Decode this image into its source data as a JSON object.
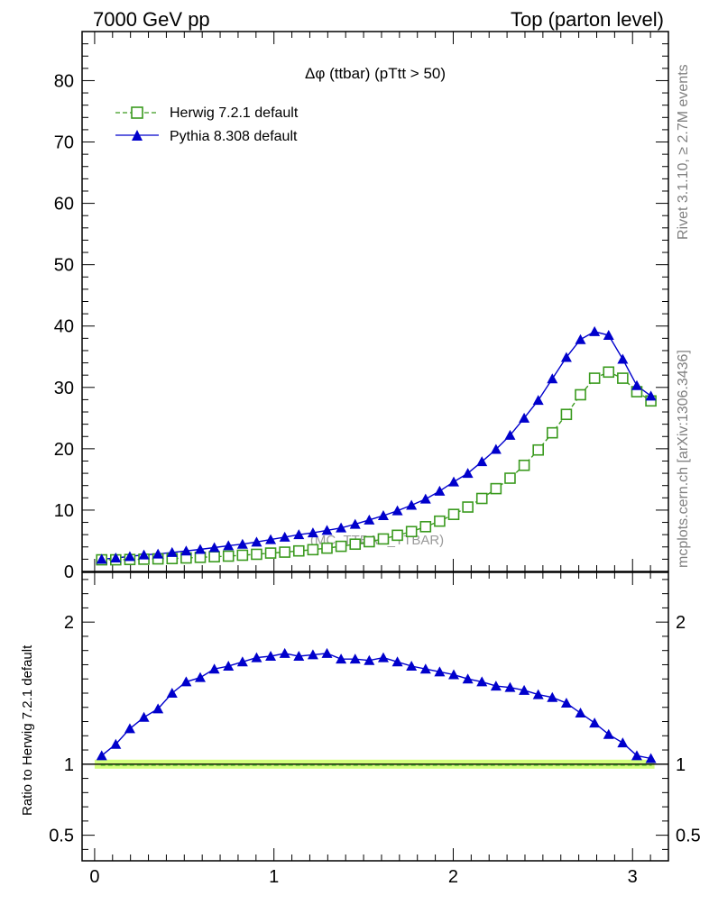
{
  "header": {
    "left": "7000 GeV pp",
    "right": "Top (parton level)"
  },
  "side_labels": {
    "rivet": "Rivet 3.1.10, ≥ 2.7M events",
    "site": "mcplots.cern.ch [arXiv:1306.3436]"
  },
  "watermark": "(MC_TTBAR_TTBAR)",
  "colors": {
    "herwig": "#3a9a1e",
    "pythia": "#0000cc",
    "band": "#ccff66"
  },
  "chart_data": [
    {
      "type": "line",
      "title": "Δφ (ttbar) (pTtt > 50)",
      "xlabel": "",
      "ylabel": "",
      "xlim": [
        -0.07,
        3.2
      ],
      "ylim": [
        0,
        88
      ],
      "yticks": [
        0,
        10,
        20,
        30,
        40,
        50,
        60,
        70,
        80
      ],
      "ytick_labels": [
        "0",
        "10",
        "20",
        "30",
        "40",
        "50",
        "60",
        "70",
        "80"
      ],
      "legend_position": "top-left",
      "x": [
        0.0393,
        0.1178,
        0.1963,
        0.2749,
        0.3534,
        0.432,
        0.5105,
        0.589,
        0.6676,
        0.7461,
        0.8247,
        0.9032,
        0.9817,
        1.0603,
        1.1388,
        1.2174,
        1.2959,
        1.3744,
        1.453,
        1.5315,
        1.6101,
        1.6886,
        1.7671,
        1.8457,
        1.9242,
        2.0028,
        2.0813,
        2.1598,
        2.2384,
        2.3169,
        2.3955,
        2.474,
        2.5525,
        2.6311,
        2.7096,
        2.7882,
        2.8667,
        2.9452,
        3.0238,
        3.1023
      ],
      "series": [
        {
          "name": "Herwig 7.2.1 default",
          "marker": "open-square",
          "values": [
            1.9,
            1.9,
            1.95,
            2.0,
            2.05,
            2.1,
            2.2,
            2.3,
            2.4,
            2.5,
            2.65,
            2.8,
            3.0,
            3.15,
            3.35,
            3.55,
            3.8,
            4.1,
            4.45,
            4.85,
            5.3,
            5.9,
            6.5,
            7.3,
            8.2,
            9.3,
            10.5,
            11.9,
            13.5,
            15.2,
            17.3,
            19.8,
            22.6,
            25.6,
            28.8,
            31.5,
            32.5,
            31.5,
            29.3,
            27.8
          ]
        },
        {
          "name": "Pythia 8.308 default",
          "marker": "filled-triangle",
          "values": [
            2.0,
            2.2,
            2.45,
            2.7,
            2.85,
            3.1,
            3.35,
            3.6,
            3.9,
            4.2,
            4.45,
            4.8,
            5.2,
            5.6,
            6.0,
            6.3,
            6.7,
            7.1,
            7.7,
            8.4,
            9.1,
            9.9,
            10.8,
            11.8,
            13.1,
            14.6,
            16.0,
            17.9,
            19.9,
            22.2,
            25.0,
            27.9,
            31.4,
            34.9,
            37.8,
            39.1,
            38.5,
            34.6,
            30.3,
            28.6
          ]
        }
      ]
    },
    {
      "type": "line",
      "title": "",
      "xlabel": "",
      "ylabel": "Ratio to Herwig 7.2.1 default",
      "xlim": [
        -0.07,
        3.2
      ],
      "ylim": [
        0.32,
        2.35
      ],
      "yticks": [
        0.5,
        1,
        2
      ],
      "ytick_labels": [
        "0.5",
        "1",
        "2"
      ],
      "xticks": [
        0,
        1,
        2,
        3
      ],
      "xtick_labels": [
        "0",
        "1",
        "2",
        "3"
      ],
      "reference_value": 1.0,
      "x": [
        0.0393,
        0.1178,
        0.1963,
        0.2749,
        0.3534,
        0.432,
        0.5105,
        0.589,
        0.6676,
        0.7461,
        0.8247,
        0.9032,
        0.9817,
        1.0603,
        1.1388,
        1.2174,
        1.2959,
        1.3744,
        1.453,
        1.5315,
        1.6101,
        1.6886,
        1.7671,
        1.8457,
        1.9242,
        2.0028,
        2.0813,
        2.1598,
        2.2384,
        2.3169,
        2.3955,
        2.474,
        2.5525,
        2.6311,
        2.7096,
        2.7882,
        2.8667,
        2.9452,
        3.0238,
        3.1023
      ],
      "series": [
        {
          "name": "Pythia 8.308 / Herwig 7.2.1",
          "marker": "filled-triangle",
          "values": [
            1.06,
            1.14,
            1.25,
            1.33,
            1.39,
            1.5,
            1.58,
            1.61,
            1.67,
            1.69,
            1.72,
            1.75,
            1.76,
            1.78,
            1.76,
            1.77,
            1.78,
            1.74,
            1.74,
            1.73,
            1.75,
            1.72,
            1.69,
            1.67,
            1.65,
            1.63,
            1.6,
            1.58,
            1.55,
            1.54,
            1.52,
            1.49,
            1.47,
            1.43,
            1.36,
            1.29,
            1.21,
            1.15,
            1.06,
            1.04
          ]
        }
      ]
    }
  ]
}
